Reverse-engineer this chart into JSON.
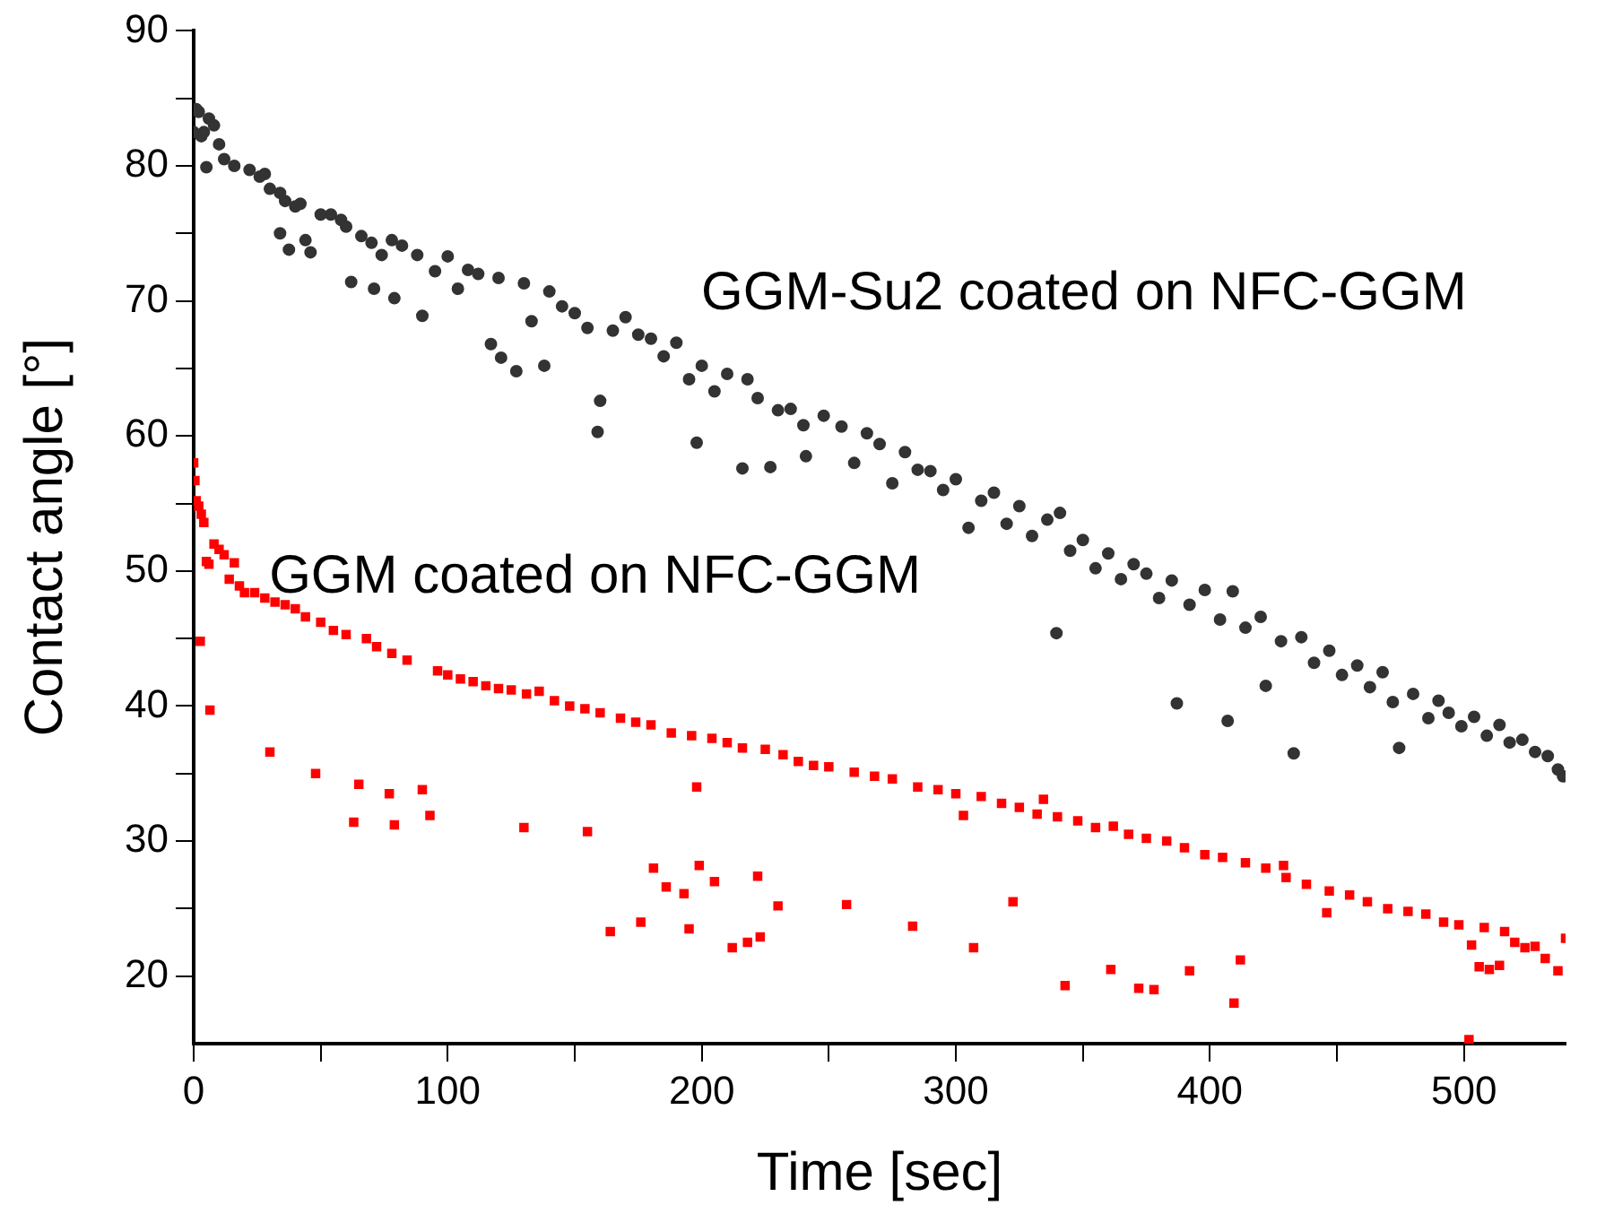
{
  "chart_data": {
    "type": "scatter",
    "xlabel": "Time [sec]",
    "ylabel": "Contact angle [°]",
    "xlim": [
      0,
      540
    ],
    "xticks": [
      0,
      {
        "value": 50,
        "label": null
      },
      100,
      {
        "value": 150,
        "label": null
      },
      200,
      {
        "value": 250,
        "label": null
      },
      300,
      {
        "value": 350,
        "label": null
      },
      400,
      {
        "value": 450,
        "label": null
      },
      500
    ],
    "ylim": [
      15,
      90
    ],
    "yticks": [
      20,
      {
        "value": 25,
        "label": null
      },
      30,
      {
        "value": 35,
        "label": null
      },
      40,
      {
        "value": 45,
        "label": null
      },
      50,
      {
        "value": 55,
        "label": null
      },
      60,
      {
        "value": 65,
        "label": null
      },
      70,
      {
        "value": 75,
        "label": null
      },
      80,
      {
        "value": 85,
        "label": null
      },
      90
    ],
    "grid": false,
    "legend": false,
    "series": [
      {
        "name": "GGM-Su2 coated on NFC-GGM",
        "color": "#333333",
        "marker": "circle",
        "x": [
          0,
          1,
          2,
          3,
          4,
          5,
          6,
          8,
          10,
          12,
          16,
          22,
          26,
          28,
          30,
          34,
          34,
          36,
          37.5,
          40,
          42,
          44,
          46,
          50,
          54,
          58,
          60,
          62,
          66,
          70,
          71,
          74,
          78,
          79,
          82,
          88,
          90,
          95,
          100,
          104,
          108,
          112,
          117,
          120,
          121,
          127,
          130,
          133,
          138,
          140,
          145,
          150,
          155,
          159,
          160,
          165,
          170,
          175,
          180,
          185,
          190,
          195,
          198,
          200,
          205,
          210,
          216,
          218,
          222,
          227,
          230,
          235,
          240,
          241,
          248,
          255,
          260,
          265,
          270,
          275,
          280,
          285,
          290,
          295,
          300,
          305,
          310,
          315,
          320,
          325,
          330,
          336,
          339.6,
          341,
          345,
          350,
          355,
          360,
          365,
          370,
          375,
          380,
          385,
          387,
          392,
          398,
          404,
          407,
          409,
          414,
          420,
          422,
          428,
          433,
          436,
          441,
          447,
          452,
          458,
          463,
          468,
          472,
          474.5,
          480,
          486,
          490,
          494,
          499,
          504,
          509,
          514,
          518,
          523,
          528,
          533,
          537,
          539
        ],
        "values": [
          82.5,
          84.2,
          84,
          82.2,
          82.5,
          79.9,
          83.5,
          83,
          81.6,
          80.5,
          80,
          79.7,
          79.2,
          79.4,
          78.3,
          78,
          75,
          77.4,
          73.8,
          77,
          77.2,
          74.5,
          73.6,
          76.4,
          76.4,
          76,
          75.5,
          71.4,
          74.8,
          74.3,
          70.9,
          73.4,
          74.5,
          70.2,
          74.1,
          73.4,
          68.9,
          72.2,
          73.3,
          70.9,
          72.3,
          72,
          66.8,
          71.7,
          65.8,
          64.8,
          71.3,
          68.5,
          65.2,
          70.7,
          69.6,
          69.1,
          68,
          60.3,
          62.6,
          67.8,
          68.8,
          67.5,
          67.2,
          65.9,
          66.9,
          64.2,
          59.5,
          65.2,
          63.3,
          64.6,
          57.6,
          64.2,
          62.8,
          57.7,
          61.9,
          62,
          60.8,
          58.5,
          61.5,
          60.7,
          58,
          60.2,
          59.4,
          56.5,
          58.8,
          57.5,
          57.4,
          56,
          56.8,
          53.2,
          55.2,
          55.8,
          53.5,
          54.8,
          52.6,
          53.8,
          45.4,
          54.3,
          51.5,
          52.3,
          50.2,
          51.3,
          49.4,
          50.5,
          49.8,
          48,
          49.3,
          40.2,
          47.5,
          48.6,
          46.4,
          38.9,
          48.5,
          45.8,
          46.6,
          41.5,
          44.8,
          36.5,
          45.1,
          43.2,
          44.1,
          42.3,
          43,
          41.4,
          42.5,
          40.3,
          36.9,
          40.9,
          39.1,
          40.4,
          39.5,
          38.5,
          39.2,
          37.8,
          38.6,
          37.3,
          37.5,
          36.6,
          36.3,
          35.3,
          34.8
        ]
      },
      {
        "name": "GGM coated on NFC-GGM",
        "color": "#ff0000",
        "marker": "square",
        "x": [
          0,
          0.5,
          1,
          2,
          2.6,
          3,
          4,
          5,
          6,
          6.4,
          8,
          10,
          12,
          14,
          16,
          18,
          20,
          24,
          28,
          30,
          32,
          36,
          40,
          44,
          48,
          50,
          55,
          60,
          63,
          65,
          68,
          72,
          77,
          78,
          79,
          84,
          90,
          93,
          96,
          100,
          105,
          110,
          115,
          120,
          125,
          130,
          131,
          136,
          142,
          148,
          154,
          155,
          160,
          164,
          168,
          174,
          176,
          180,
          181,
          186,
          188,
          193,
          195,
          196,
          198,
          199,
          204,
          205,
          210,
          212,
          216,
          218,
          222,
          223,
          225,
          230,
          232,
          238,
          244,
          250,
          257,
          260,
          268,
          275,
          283,
          285,
          293,
          300,
          303,
          307,
          310,
          318,
          322.5,
          325,
          332,
          334.5,
          340,
          343,
          348,
          355,
          361,
          362,
          368,
          372,
          375,
          378,
          383,
          390,
          392,
          398,
          405,
          409.5,
          412,
          414,
          422,
          429,
          430,
          438,
          446,
          447,
          455,
          462,
          470,
          478,
          485,
          492,
          498,
          502,
          503,
          506,
          508,
          510,
          514,
          516,
          520,
          524,
          528,
          532,
          537,
          540
        ],
        "values": [
          58,
          56.7,
          55.2,
          54.8,
          44.8,
          54.2,
          53.6,
          50.7,
          50.5,
          39.7,
          52,
          51.6,
          51.2,
          49.4,
          50.6,
          48.9,
          48.4,
          48.4,
          48,
          36.6,
          47.7,
          47.5,
          47.2,
          46.6,
          35,
          46.2,
          45.6,
          45.3,
          31.4,
          34.2,
          45,
          44.4,
          33.5,
          43.9,
          31.2,
          43.4,
          33.8,
          31.9,
          42.6,
          42.3,
          42,
          41.8,
          41.5,
          41.3,
          41.2,
          31,
          40.9,
          41.1,
          40.4,
          40,
          39.8,
          30.7,
          39.5,
          23.3,
          39.1,
          38.8,
          24,
          38.6,
          28,
          26.6,
          38,
          26.1,
          23.5,
          37.8,
          34,
          28.2,
          37.6,
          27,
          37.3,
          22.1,
          36.9,
          22.5,
          27.4,
          22.9,
          36.8,
          25.2,
          36.4,
          35.9,
          35.6,
          35.5,
          25.3,
          35.1,
          34.8,
          34.6,
          23.7,
          34,
          33.8,
          33.5,
          31.9,
          22.1,
          33.3,
          32.8,
          25.5,
          32.5,
          32,
          33.1,
          31.8,
          19.3,
          31.5,
          31,
          20.5,
          31.1,
          30.5,
          19.1,
          30.2,
          19,
          30,
          29.5,
          20.4,
          29,
          28.8,
          18,
          21.2,
          28.4,
          28,
          28.2,
          27.3,
          26.8,
          24.7,
          26.3,
          26,
          25.5,
          25,
          24.8,
          24.6,
          24,
          23.8,
          15.3,
          22.3,
          20.7,
          23.6,
          20.5,
          20.8,
          23.3,
          22.5,
          22.1,
          22.2,
          21.3,
          20.4,
          22.8
        ]
      }
    ]
  }
}
